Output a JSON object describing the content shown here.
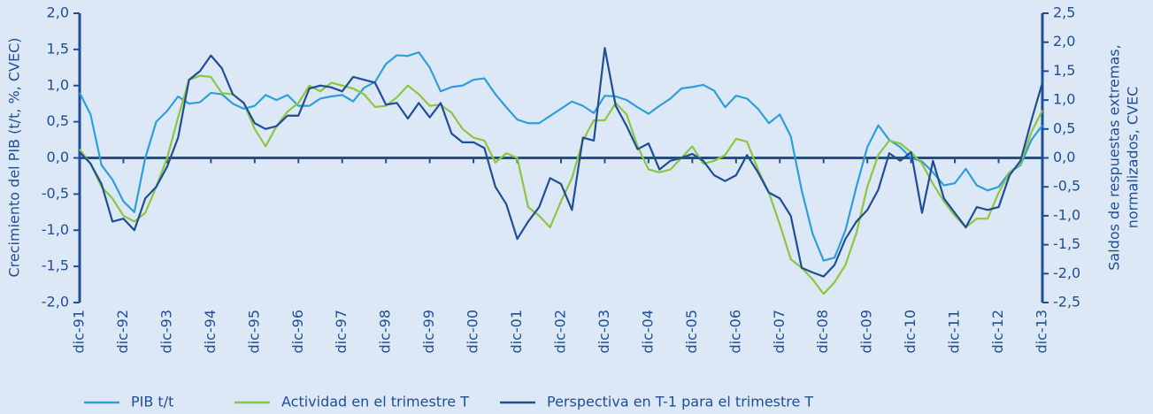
{
  "chart_data": {
    "type": "line",
    "ylabel": "Crecimiento del PIB (t/t, %, CVEC)",
    "y2label": [
      "Saldos de respuestas extremas,",
      "normalizados, CVEC"
    ],
    "categories": [
      "dic-91",
      null,
      null,
      null,
      "dic-92",
      null,
      null,
      null,
      "dic-93",
      null,
      null,
      null,
      "dic-94",
      null,
      null,
      null,
      "dic-95",
      null,
      null,
      null,
      "dic-96",
      null,
      null,
      null,
      "dic-97",
      null,
      null,
      null,
      "dic-98",
      null,
      null,
      null,
      "dic-99",
      null,
      null,
      null,
      "dic-00",
      null,
      null,
      null,
      "dic-01",
      null,
      null,
      null,
      "dic-02",
      null,
      null,
      null,
      "dic-03",
      null,
      null,
      null,
      "dic-04",
      null,
      null,
      null,
      "dic-05",
      null,
      null,
      null,
      "dic-06",
      null,
      null,
      null,
      "dic-07",
      null,
      null,
      null,
      "dic-08",
      null,
      null,
      null,
      "dic-09",
      null,
      null,
      null,
      "dic-10",
      null,
      null,
      null,
      "dic-11",
      null,
      null,
      null,
      "dic-12",
      null,
      null,
      null,
      "dic-13"
    ],
    "ylim": [
      -2.0,
      2.0
    ],
    "yticks": [
      {
        "value": -2.0,
        "label": "-2,0"
      },
      {
        "value": -1.5,
        "label": "-1,5"
      },
      {
        "value": -1.0,
        "label": "-1,0"
      },
      {
        "value": -0.5,
        "label": "-0,5"
      },
      {
        "value": 0,
        "label": "0,0"
      },
      {
        "value": 0.5,
        "label": "0,5"
      },
      {
        "value": 1.0,
        "label": "1,0"
      },
      {
        "value": 1.5,
        "label": "1,5"
      },
      {
        "value": 2.0,
        "label": "2,0"
      }
    ],
    "y2lim": [
      -2.5,
      2.5
    ],
    "y2ticks": [
      {
        "value": -2.5,
        "label": "-2,5"
      },
      {
        "value": -2.0,
        "label": "-2,0"
      },
      {
        "value": -1.5,
        "label": "-1,5"
      },
      {
        "value": -1.0,
        "label": "-1,0"
      },
      {
        "value": -0.5,
        "label": "-0,5"
      },
      {
        "value": 0,
        "label": "0,0"
      },
      {
        "value": 0.5,
        "label": "0,5"
      },
      {
        "value": 1.0,
        "label": "1,0"
      },
      {
        "value": 1.5,
        "label": "1,5"
      },
      {
        "value": 2.0,
        "label": "2,0"
      },
      {
        "value": 2.5,
        "label": "2,5"
      }
    ],
    "grid": false,
    "legend": "bottom",
    "series": [
      {
        "name": "PIB t/t",
        "color": "#2e9fd8",
        "axis": "y",
        "values": [
          0.9,
          0.6,
          -0.1,
          -0.3,
          -0.6,
          -0.75,
          0.0,
          0.5,
          0.65,
          0.85,
          0.75,
          0.77,
          0.9,
          0.88,
          0.75,
          0.68,
          0.72,
          0.87,
          0.8,
          0.87,
          0.72,
          0.72,
          0.82,
          0.85,
          0.87,
          0.78,
          0.97,
          1.05,
          1.3,
          1.42,
          1.41,
          1.46,
          1.25,
          0.92,
          0.98,
          1.0,
          1.08,
          1.1,
          0.88,
          0.7,
          0.53,
          0.48,
          0.48,
          0.58,
          0.68,
          0.78,
          0.72,
          0.62,
          0.86,
          0.85,
          0.8,
          0.7,
          0.61,
          0.72,
          0.82,
          0.96,
          0.98,
          1.01,
          0.93,
          0.7,
          0.86,
          0.82,
          0.68,
          0.48,
          0.6,
          0.3,
          -0.45,
          -1.05,
          -1.42,
          -1.38,
          -1.0,
          -0.4,
          0.15,
          0.45,
          0.25,
          0.15,
          0.0,
          -0.05,
          -0.2,
          -0.38,
          -0.35,
          -0.15,
          -0.38,
          -0.45,
          -0.4,
          -0.2,
          -0.1,
          0.25,
          0.45
        ]
      },
      {
        "name": "Actividad en el trimestre T",
        "color": "#8dc63f",
        "axis": "y2",
        "values": [
          0.15,
          -0.1,
          -0.5,
          -0.7,
          -1.0,
          -1.1,
          -0.95,
          -0.5,
          0.0,
          0.7,
          1.35,
          1.42,
          1.4,
          1.12,
          1.1,
          0.95,
          0.5,
          0.2,
          0.55,
          0.8,
          0.95,
          1.25,
          1.15,
          1.3,
          1.25,
          1.2,
          1.1,
          0.88,
          0.9,
          1.05,
          1.25,
          1.1,
          0.9,
          0.92,
          0.78,
          0.5,
          0.35,
          0.3,
          -0.08,
          0.08,
          0.0,
          -0.85,
          -1.0,
          -1.2,
          -0.75,
          -0.35,
          0.3,
          0.65,
          0.65,
          0.95,
          0.75,
          0.2,
          -0.2,
          -0.25,
          -0.2,
          0.0,
          0.2,
          -0.1,
          -0.05,
          0.05,
          0.33,
          0.28,
          -0.2,
          -0.6,
          -1.15,
          -1.75,
          -1.9,
          -2.1,
          -2.35,
          -2.15,
          -1.85,
          -1.3,
          -0.5,
          0.05,
          0.3,
          0.25,
          0.1,
          -0.1,
          -0.45,
          -0.75,
          -1.0,
          -1.2,
          -1.05,
          -1.05,
          -0.6,
          -0.25,
          -0.1,
          0.45,
          0.82
        ]
      },
      {
        "name": "Perspectiva en T-1 para el trimestre T",
        "color": "#1f4e96",
        "axis": "y2",
        "values": [
          0.1,
          -0.1,
          -0.45,
          -1.1,
          -1.05,
          -1.25,
          -0.7,
          -0.5,
          -0.15,
          0.35,
          1.35,
          1.5,
          1.77,
          1.55,
          1.1,
          0.95,
          0.6,
          0.5,
          0.55,
          0.73,
          0.73,
          1.2,
          1.25,
          1.22,
          1.15,
          1.4,
          1.35,
          1.3,
          0.92,
          0.95,
          0.68,
          0.95,
          0.7,
          0.95,
          0.42,
          0.27,
          0.27,
          0.17,
          -0.5,
          -0.8,
          -1.4,
          -1.1,
          -0.85,
          -0.35,
          -0.45,
          -0.9,
          0.35,
          0.3,
          1.9,
          0.9,
          0.55,
          0.15,
          0.25,
          -0.2,
          -0.05,
          0.0,
          0.07,
          -0.05,
          -0.3,
          -0.4,
          -0.3,
          0.05,
          -0.25,
          -0.6,
          -0.7,
          -1.0,
          -1.9,
          -1.98,
          -2.05,
          -1.85,
          -1.4,
          -1.1,
          -0.9,
          -0.55,
          0.08,
          -0.05,
          0.1,
          -0.95,
          -0.05,
          -0.7,
          -0.95,
          -1.2,
          -0.85,
          -0.9,
          -0.85,
          -0.3,
          -0.05,
          0.65,
          1.3
        ]
      }
    ]
  }
}
